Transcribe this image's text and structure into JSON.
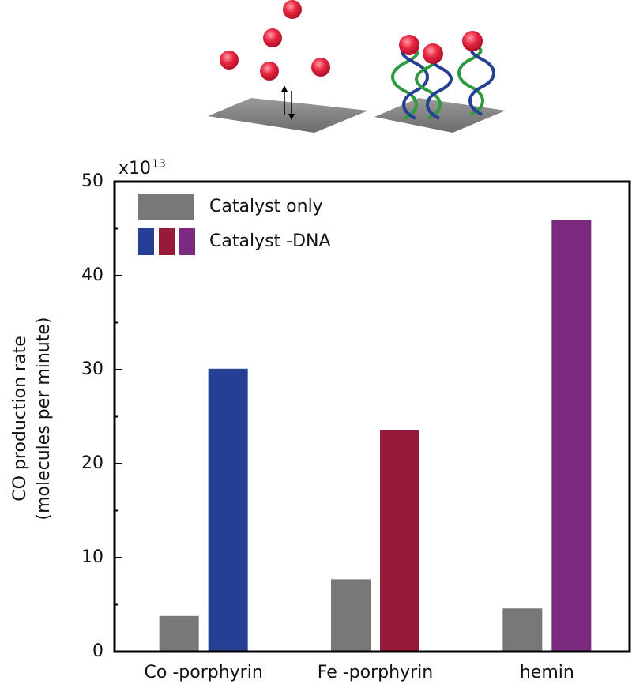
{
  "chart_data": {
    "type": "bar",
    "y_multiplier": {
      "base": "x10",
      "exponent": "13"
    },
    "ylabel": [
      "CO production rate",
      "(molecules per minute)"
    ],
    "categories": [
      "Co -porphyrin",
      "Fe -porphyrin",
      "hemin"
    ],
    "series": [
      {
        "name": "Catalyst only",
        "color": "#7a7876",
        "values": [
          3.8,
          7.7,
          4.6
        ]
      },
      {
        "name": "Catalyst -DNA",
        "colors": [
          "#243f93",
          "#96193a",
          "#7b2a80"
        ],
        "values": [
          30.1,
          23.6,
          45.9
        ]
      }
    ],
    "ylim": [
      0,
      50
    ],
    "yticks": [
      0,
      10,
      20,
      30,
      40,
      50
    ],
    "legend": "upper left"
  }
}
